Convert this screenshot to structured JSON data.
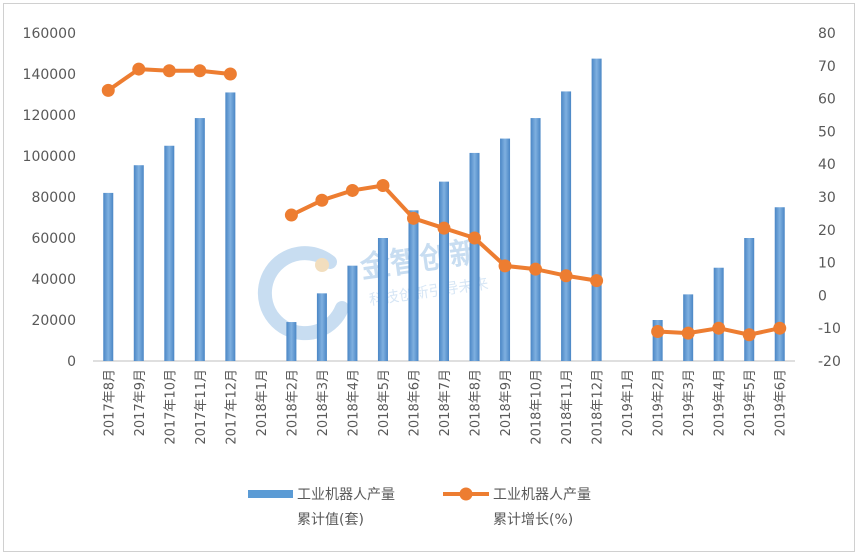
{
  "chart_data": {
    "type": "bar+line",
    "categories": [
      "2017年8月",
      "2017年9月",
      "2017年10月",
      "2017年11月",
      "2017年12月",
      "2018年1月",
      "2018年2月",
      "2018年3月",
      "2018年4月",
      "2018年5月",
      "2018年6月",
      "2018年7月",
      "2018年8月",
      "2018年9月",
      "2018年10月",
      "2018年11月",
      "2018年12月",
      "2019年1月",
      "2019年2月",
      "2019年3月",
      "2019年4月",
      "2019年5月",
      "2019年6月"
    ],
    "series": [
      {
        "name": "工业机器人产量累计值(套)",
        "type": "bar",
        "axis": "left",
        "values": [
          82000,
          95500,
          105000,
          118500,
          131000,
          null,
          19000,
          33000,
          46500,
          60000,
          73500,
          87500,
          101500,
          108500,
          118500,
          131500,
          147500,
          null,
          20000,
          32500,
          45500,
          60000,
          75000
        ]
      },
      {
        "name": "工业机器人产量累计增长(%)",
        "type": "line",
        "axis": "right",
        "values": [
          62.5,
          69,
          68.5,
          68.5,
          67.5,
          null,
          24.5,
          29,
          32,
          33.5,
          23.5,
          20.5,
          17.5,
          9,
          8,
          6,
          4.5,
          null,
          -11,
          -11.5,
          -10,
          -12,
          -10
        ]
      }
    ],
    "legend": [
      {
        "line1": "工业机器人产量",
        "line2": "累计值(套)",
        "color": "#5b9bd5"
      },
      {
        "line1": "工业机器人产量",
        "line2": "累计增长(%)",
        "color": "#ed7d31"
      }
    ],
    "y_left": {
      "min": 0,
      "max": 160000,
      "step": 20000
    },
    "y_right": {
      "min": -20,
      "max": 80,
      "step": 10
    },
    "legend_position": "bottom",
    "grid": false,
    "colors": {
      "bar": "#5b9bd5",
      "bar_dark": "#4472c4",
      "line": "#ed7d31",
      "axis": "#bfbfbf",
      "text": "#595959"
    },
    "watermark": {
      "text": "金智创新",
      "subtext": "科技创新引导未来"
    }
  }
}
